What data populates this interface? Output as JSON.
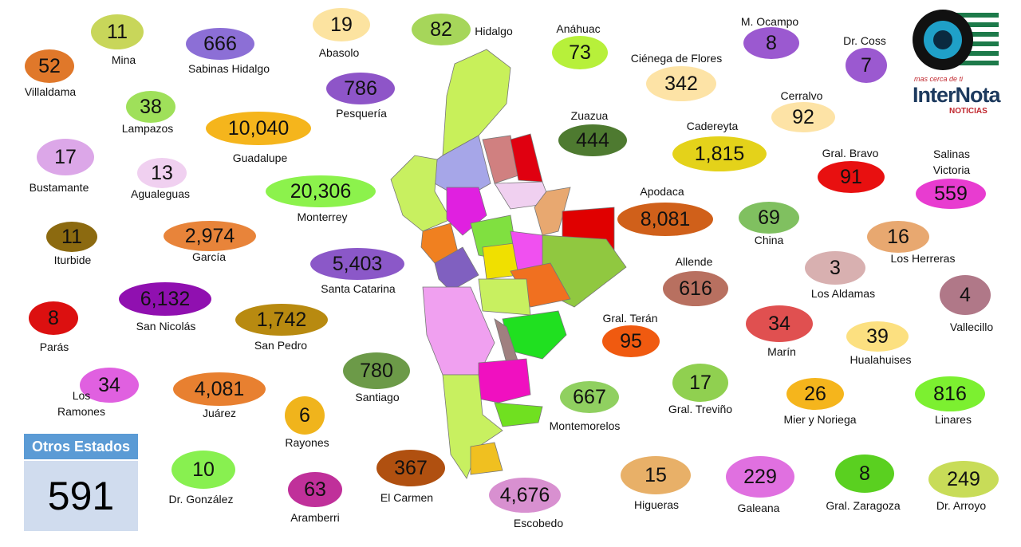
{
  "municipalities": [
    {
      "name": "Mina",
      "value": "11",
      "color": "#c8d65a"
    },
    {
      "name": "Villaldama",
      "value": "52",
      "color": "#e0782a"
    },
    {
      "name": "Sabinas Hidalgo",
      "value": "666",
      "color": "#8c6fd6"
    },
    {
      "name": "Abasolo",
      "value": "19",
      "color": "#fce3a0"
    },
    {
      "name": "Hidalgo",
      "value": "82",
      "color": "#a6d65a"
    },
    {
      "name": "Anáhuac",
      "value": "73",
      "color": "#b7f03a"
    },
    {
      "name": "Ciénega de Flores",
      "value": "342",
      "color": "#fde3a6"
    },
    {
      "name": "M. Ocampo",
      "value": "8",
      "color": "#9b59d0"
    },
    {
      "name": "Dr. Coss",
      "value": "7",
      "color": "#9b59d0"
    },
    {
      "name": "Lampazos",
      "value": "38",
      "color": "#9fe05a"
    },
    {
      "name": "Pesquería",
      "value": "786",
      "color": "#8e55c8"
    },
    {
      "name": "Guadalupe",
      "value": "10,040",
      "color": "#f5b51c"
    },
    {
      "name": "Zuazua",
      "value": "444",
      "color": "#4e7a30"
    },
    {
      "name": "Cerralvo",
      "value": "92",
      "color": "#fde3a6"
    },
    {
      "name": "Cadereyta",
      "value": "1,815",
      "color": "#e4d21a"
    },
    {
      "name": "Bustamante",
      "value": "17",
      "color": "#dca7e8"
    },
    {
      "name": "Agualeguas",
      "value": "13",
      "color": "#f0d0f0"
    },
    {
      "name": "Gral. Bravo",
      "value": "91",
      "color": "#e81010"
    },
    {
      "name": "Salinas Victoria",
      "value": "559",
      "color": "#e83cd0"
    },
    {
      "name": "Monterrey",
      "value": "20,306",
      "color": "#8cf24c"
    },
    {
      "name": "Apodaca",
      "value": "8,081",
      "color": "#d0601a"
    },
    {
      "name": "Iturbide",
      "value": "11",
      "color": "#8c6a10"
    },
    {
      "name": "García",
      "value": "2,974",
      "color": "#e8843a"
    },
    {
      "name": "China",
      "value": "69",
      "color": "#80c060"
    },
    {
      "name": "Los Herreras",
      "value": "16",
      "color": "#e8a870"
    },
    {
      "name": "Santa Catarina",
      "value": "5,403",
      "color": "#8b58c8"
    },
    {
      "name": "Allende",
      "value": "616",
      "color": "#b87060"
    },
    {
      "name": "Los Aldamas",
      "value": "3",
      "color": "#d8b0b0"
    },
    {
      "name": "Vallecillo",
      "value": "4",
      "color": "#b07888"
    },
    {
      "name": "San Nicolás",
      "value": "6,132",
      "color": "#9010b0"
    },
    {
      "name": "San Pedro",
      "value": "1,742",
      "color": "#b88a10"
    },
    {
      "name": "Parás",
      "value": "8",
      "color": "#dc1010"
    },
    {
      "name": "Gral. Terán",
      "value": "95",
      "color": "#f05a10"
    },
    {
      "name": "Marín",
      "value": "34",
      "color": "#e05050"
    },
    {
      "name": "Hualahuises",
      "value": "39",
      "color": "#fce080"
    },
    {
      "name": "Los Ramones",
      "value": "34",
      "color": "#e060e0"
    },
    {
      "name": "Juárez",
      "value": "4,081",
      "color": "#e88030"
    },
    {
      "name": "Santiago",
      "value": "780",
      "color": "#6c9a48"
    },
    {
      "name": "Gral. Treviño",
      "value": "17",
      "color": "#90d050"
    },
    {
      "name": "Mier y Noriega",
      "value": "26",
      "color": "#f5b51c"
    },
    {
      "name": "Linares",
      "value": "816",
      "color": "#7cf030"
    },
    {
      "name": "Montemorelos",
      "value": "667",
      "color": "#90d060"
    },
    {
      "name": "Rayones",
      "value": "6",
      "color": "#f0b41c"
    },
    {
      "name": "Dr. González",
      "value": "10",
      "color": "#88f050"
    },
    {
      "name": "Aramberri",
      "value": "63",
      "color": "#c0309a"
    },
    {
      "name": "El Carmen",
      "value": "367",
      "color": "#b05010"
    },
    {
      "name": "Escobedo",
      "value": "4,676",
      "color": "#d890d0"
    },
    {
      "name": "Higueras",
      "value": "15",
      "color": "#e8b068"
    },
    {
      "name": "Galeana",
      "value": "229",
      "color": "#e070e0"
    },
    {
      "name": "Gral. Zaragoza",
      "value": "8",
      "color": "#5ad020"
    },
    {
      "name": "Dr. Arroyo",
      "value": "249",
      "color": "#c8dc58"
    }
  ],
  "others": {
    "label": "Otros Estados",
    "value": "591"
  },
  "logo": {
    "tagline": "mas cerca de ti",
    "brand": "InterNota",
    "sub": "NOTICIAS"
  }
}
